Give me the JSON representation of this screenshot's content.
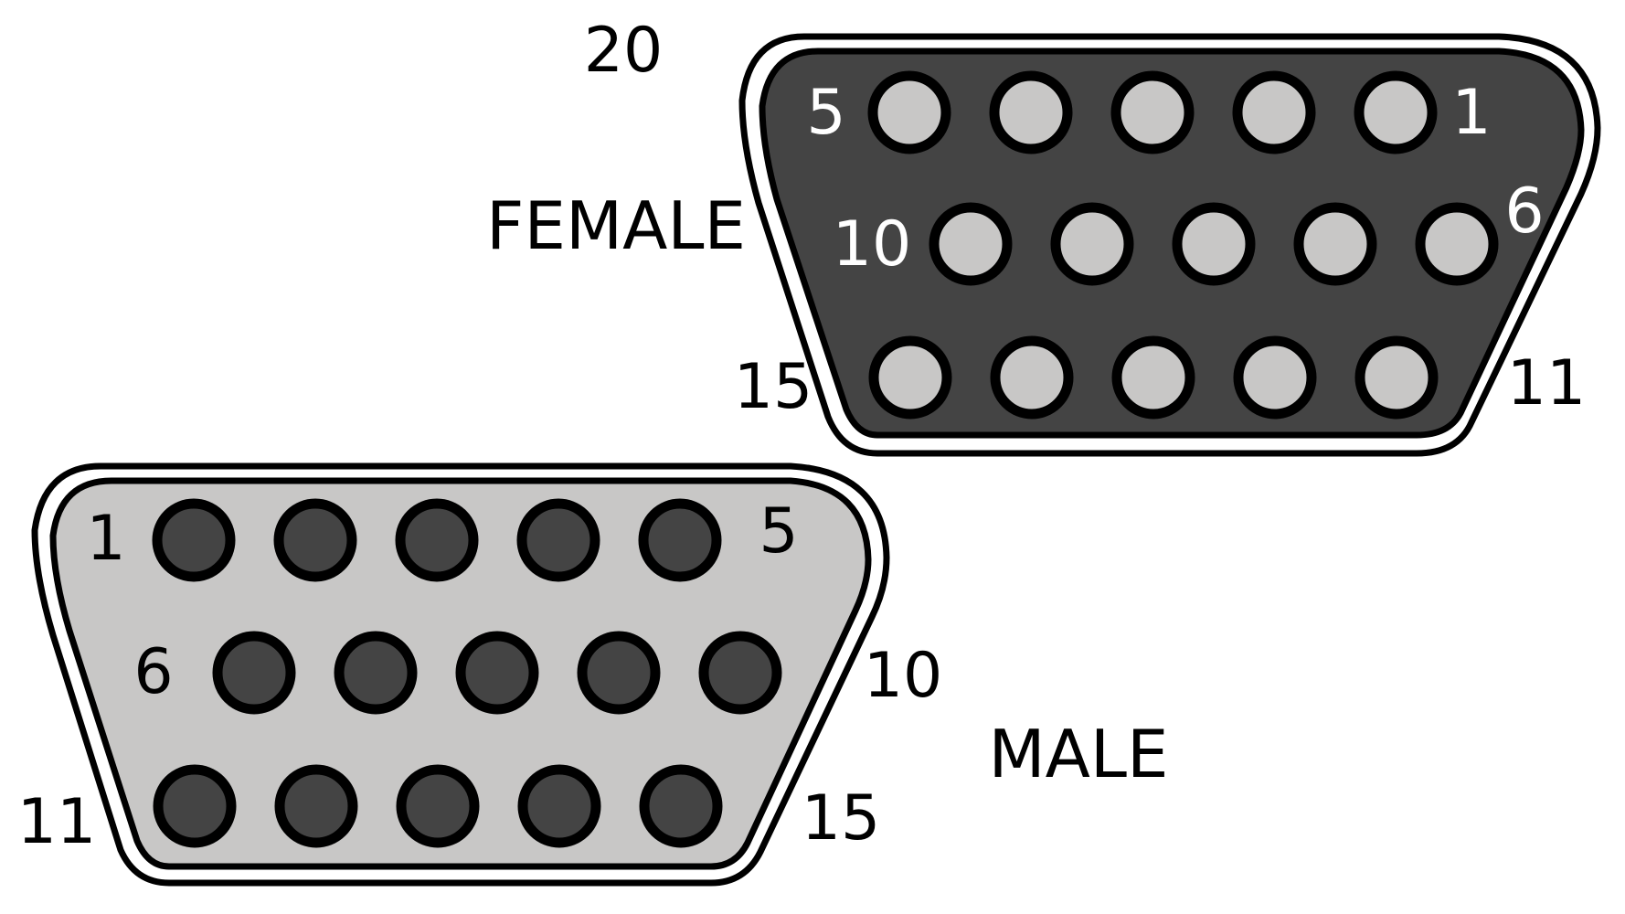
{
  "figure_label": "20",
  "colors": {
    "dark": "#444444",
    "light": "#c8c7c6",
    "outline": "#000000",
    "text_on_dark": "#ffffff",
    "text_on_light": "#000000"
  },
  "female": {
    "title": "FEMALE",
    "pins_per_row": [
      5,
      5,
      5
    ],
    "labels": {
      "row1_left": "5",
      "row1_right": "1",
      "row2_left": "10",
      "row2_right": "6",
      "row3_left": "15",
      "row3_right": "11"
    }
  },
  "male": {
    "title": "MALE",
    "pins_per_row": [
      5,
      5,
      5
    ],
    "labels": {
      "row1_left": "1",
      "row1_right": "5",
      "row2_left": "6",
      "row2_right": "10",
      "row3_left": "11",
      "row3_right": "15"
    }
  }
}
